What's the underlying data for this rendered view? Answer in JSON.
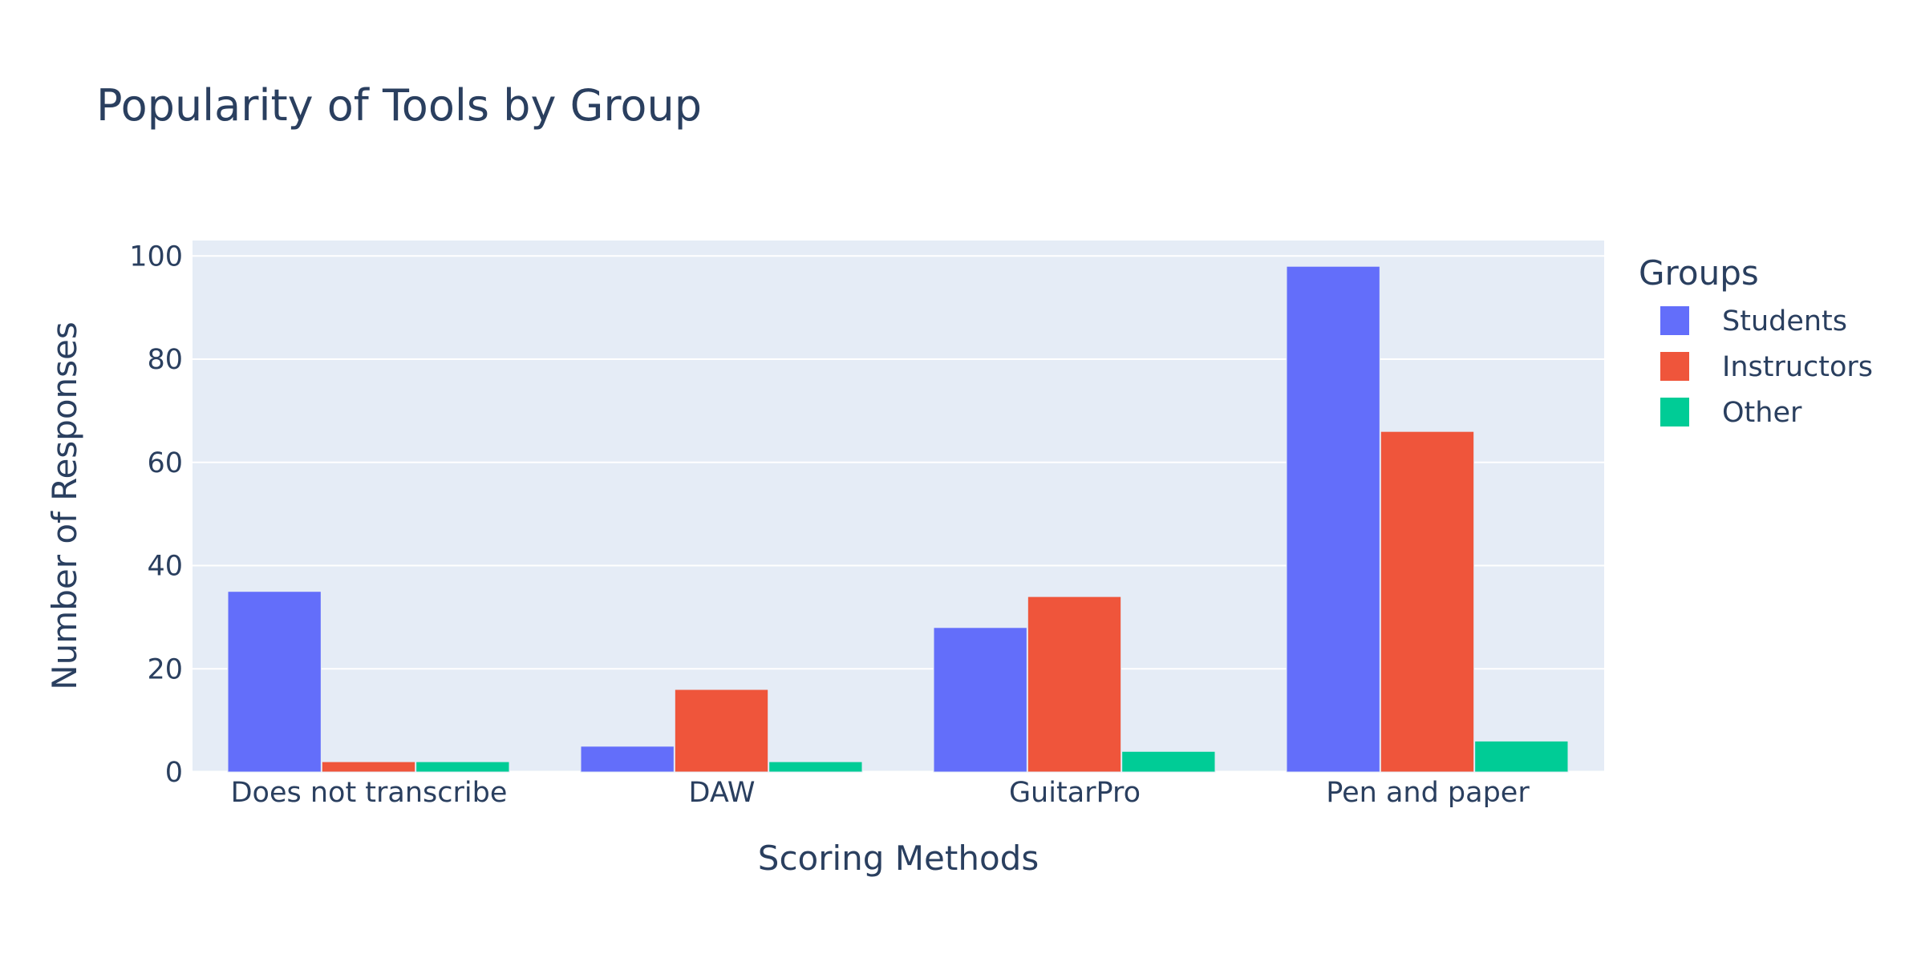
{
  "chart_data": {
    "type": "bar",
    "title": "Popularity of Tools by Group",
    "xlabel": "Scoring Methods",
    "ylabel": "Number of Responses",
    "categories": [
      "Does not transcribe",
      "DAW",
      "GuitarPro",
      "Pen and paper"
    ],
    "series": [
      {
        "name": "Students",
        "values": [
          35,
          5,
          28,
          98
        ],
        "color": "#636efa"
      },
      {
        "name": "Instructors",
        "values": [
          2,
          16,
          34,
          66
        ],
        "color": "#ef553b"
      },
      {
        "name": "Other",
        "values": [
          2,
          2,
          4,
          6
        ],
        "color": "#00cc96"
      }
    ],
    "ylim": [
      0,
      103
    ],
    "yticks": [
      0,
      20,
      40,
      60,
      80,
      100
    ],
    "grid": true,
    "legend": {
      "title": "Groups",
      "placement": "right"
    },
    "colors": {
      "plot_background": "#e5ecf6",
      "gridline": "#ffffff",
      "text": "#2a3f5f"
    }
  }
}
